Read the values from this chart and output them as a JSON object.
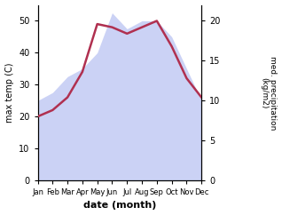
{
  "months": [
    "Jan",
    "Feb",
    "Mar",
    "Apr",
    "May",
    "Jun",
    "Jul",
    "Aug",
    "Sep",
    "Oct",
    "Nov",
    "Dec"
  ],
  "month_indices": [
    1,
    2,
    3,
    4,
    5,
    6,
    7,
    8,
    9,
    10,
    11,
    12
  ],
  "temp_max": [
    20,
    22,
    26,
    34,
    49,
    48,
    46,
    48,
    50,
    42,
    32,
    26
  ],
  "precip": [
    10,
    11,
    13,
    14,
    16,
    21,
    19,
    20,
    20,
    18,
    14,
    10
  ],
  "temp_ylim": [
    0,
    55
  ],
  "precip_ylim": [
    0,
    22
  ],
  "temp_yticks": [
    0,
    10,
    20,
    30,
    40,
    50
  ],
  "precip_yticks": [
    0,
    5,
    10,
    15,
    20
  ],
  "fill_color": "#b0baf0",
  "fill_alpha": 0.65,
  "line_color": "#b03050",
  "line_width": 1.8,
  "xlabel": "date (month)",
  "ylabel_left": "max temp (C)",
  "ylabel_right": "med. precipitation\n(kg/m2)",
  "bg_color": "#ffffff"
}
